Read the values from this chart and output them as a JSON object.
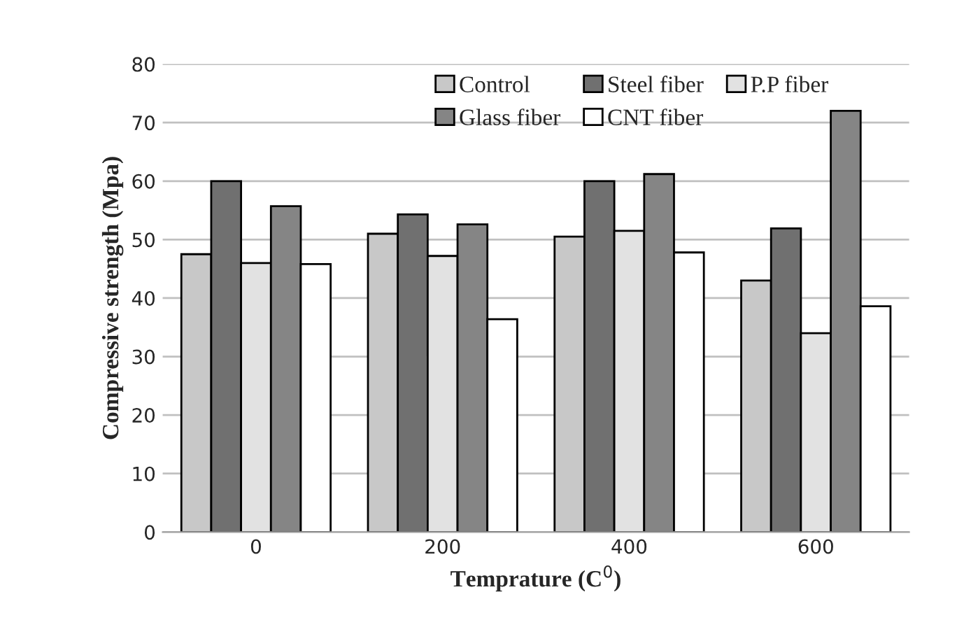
{
  "chart_data": {
    "type": "bar",
    "xlabel": "Temprature (C$^{0}$)",
    "ylabel": "Compressive strength (Mpa)",
    "categories": [
      "0",
      "200",
      "400",
      "600"
    ],
    "series": [
      {
        "name": "Control",
        "color": "#c8c8c8",
        "values": [
          47.5,
          51,
          50.5,
          43
        ]
      },
      {
        "name": "Steel fiber",
        "color": "#707070",
        "values": [
          60,
          54.3,
          60,
          51.9
        ]
      },
      {
        "name": "P.P fiber",
        "color": "#e2e2e2",
        "values": [
          46,
          47.2,
          51.5,
          34
        ]
      },
      {
        "name": "Glass fiber",
        "color": "#858585",
        "values": [
          55.7,
          52.6,
          61.2,
          72
        ]
      },
      {
        "name": "CNT fiber",
        "color": "#ffffff",
        "values": [
          45.8,
          36.4,
          47.8,
          38.6
        ]
      }
    ],
    "ylim": [
      0,
      80
    ],
    "yticks": [
      0,
      10,
      20,
      30,
      40,
      50,
      60,
      70,
      80
    ],
    "grid": "y",
    "legend": "top right"
  }
}
